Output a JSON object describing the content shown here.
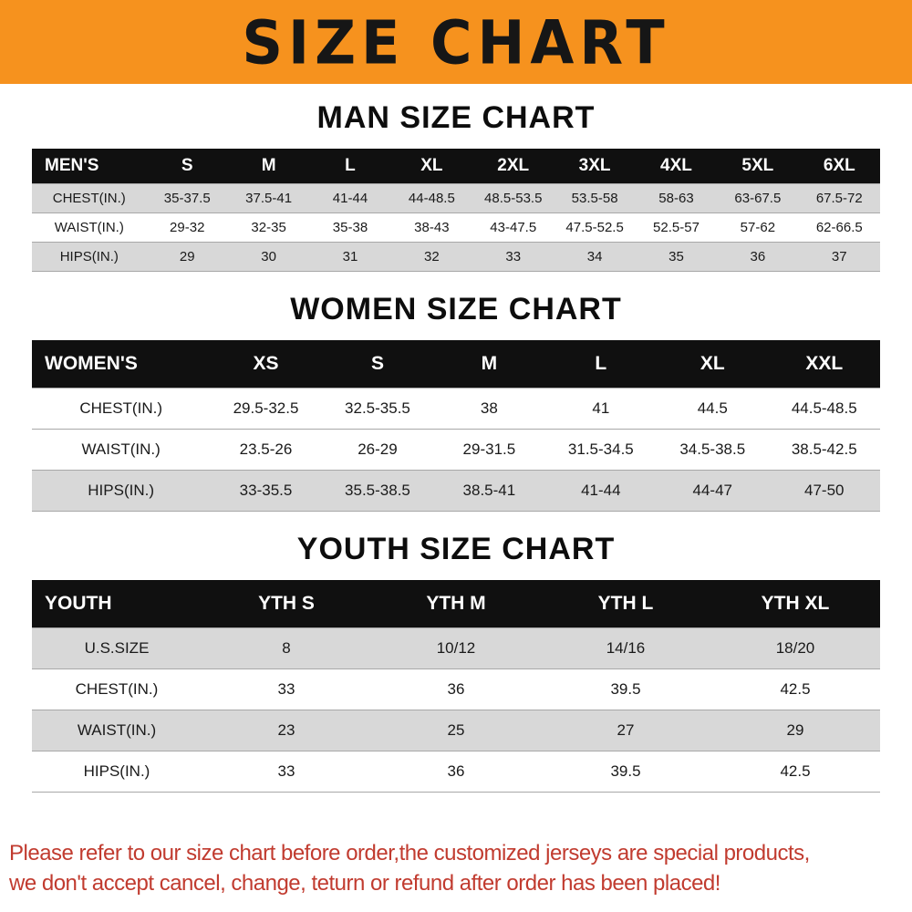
{
  "banner": {
    "title": "SIZE CHART",
    "bg_color": "#F6921E",
    "text_color": "#161616"
  },
  "chart_data": [
    {
      "type": "table",
      "id": "man",
      "title": "MAN SIZE CHART",
      "columns": [
        "MEN'S",
        "S",
        "M",
        "L",
        "XL",
        "2XL",
        "3XL",
        "4XL",
        "5XL",
        "6XL"
      ],
      "rows": [
        {
          "label": "CHEST(IN.)",
          "values": [
            "35-37.5",
            "37.5-41",
            "41-44",
            "44-48.5",
            "48.5-53.5",
            "53.5-58",
            "58-63",
            "63-67.5",
            "67.5-72"
          ],
          "shaded": true
        },
        {
          "label": "WAIST(IN.)",
          "values": [
            "29-32",
            "32-35",
            "35-38",
            "38-43",
            "43-47.5",
            "47.5-52.5",
            "52.5-57",
            "57-62",
            "62-66.5"
          ],
          "shaded": false
        },
        {
          "label": "HIPS(IN.)",
          "values": [
            "29",
            "30",
            "31",
            "32",
            "33",
            "34",
            "35",
            "36",
            "37"
          ],
          "shaded": true
        }
      ]
    },
    {
      "type": "table",
      "id": "women",
      "title": "WOMEN SIZE CHART",
      "columns": [
        "WOMEN'S",
        "XS",
        "S",
        "M",
        "L",
        "XL",
        "XXL"
      ],
      "rows": [
        {
          "label": "CHEST(IN.)",
          "values": [
            "29.5-32.5",
            "32.5-35.5",
            "38",
            "41",
            "44.5",
            "44.5-48.5"
          ],
          "shaded": false
        },
        {
          "label": "WAIST(IN.)",
          "values": [
            "23.5-26",
            "26-29",
            "29-31.5",
            "31.5-34.5",
            "34.5-38.5",
            "38.5-42.5"
          ],
          "shaded": false
        },
        {
          "label": "HIPS(IN.)",
          "values": [
            "33-35.5",
            "35.5-38.5",
            "38.5-41",
            "41-44",
            "44-47",
            "47-50"
          ],
          "shaded": true
        }
      ]
    },
    {
      "type": "table",
      "id": "youth",
      "title": "YOUTH SIZE CHART",
      "columns": [
        "YOUTH",
        "YTH S",
        "YTH M",
        "YTH L",
        "YTH XL"
      ],
      "rows": [
        {
          "label": "U.S.SIZE",
          "values": [
            "8",
            "10/12",
            "14/16",
            "18/20"
          ],
          "shaded": true
        },
        {
          "label": "CHEST(IN.)",
          "values": [
            "33",
            "36",
            "39.5",
            "42.5"
          ],
          "shaded": false
        },
        {
          "label": "WAIST(IN.)",
          "values": [
            "23",
            "25",
            "27",
            "29"
          ],
          "shaded": true
        },
        {
          "label": "HIPS(IN.)",
          "values": [
            "33",
            "36",
            "39.5",
            "42.5"
          ],
          "shaded": false
        }
      ]
    }
  ],
  "footer": {
    "text_color": "#C13B2F",
    "lines": [
      "Please refer to our size chart before order,the customized jerseys are special products,",
      "we don't accept cancel, change, teturn or refund after order has been placed!"
    ]
  }
}
